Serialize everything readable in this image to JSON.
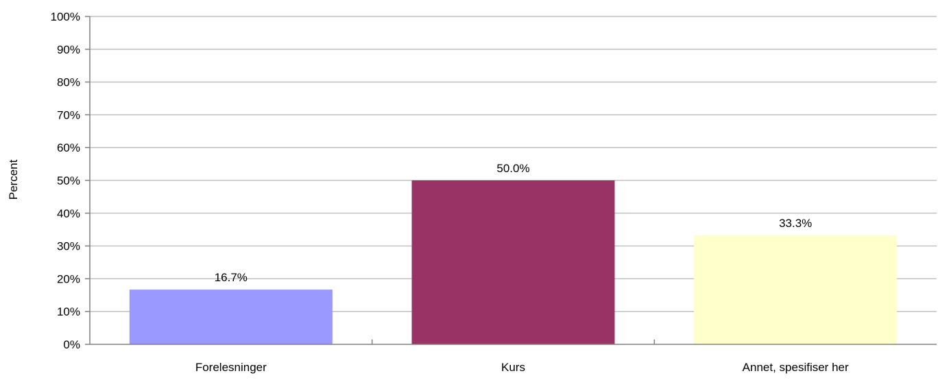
{
  "chart_data": {
    "type": "bar",
    "title": "",
    "xlabel": "",
    "ylabel": "Percent",
    "ylim": [
      0,
      100
    ],
    "yticks": [
      "0%",
      "10%",
      "20%",
      "30%",
      "40%",
      "50%",
      "60%",
      "70%",
      "80%",
      "90%",
      "100%"
    ],
    "grid": true,
    "categories": [
      "Forelesninger",
      "Kurs",
      "Annet, spesifiser her"
    ],
    "values": [
      16.7,
      50.0,
      33.3
    ],
    "data_labels": [
      "16.7%",
      "50.0%",
      "33.3%"
    ],
    "colors": [
      "#9999ff",
      "#993366",
      "#ffffcc"
    ],
    "gridline_color": "#c0c0c0",
    "axis_color": "#808080"
  }
}
